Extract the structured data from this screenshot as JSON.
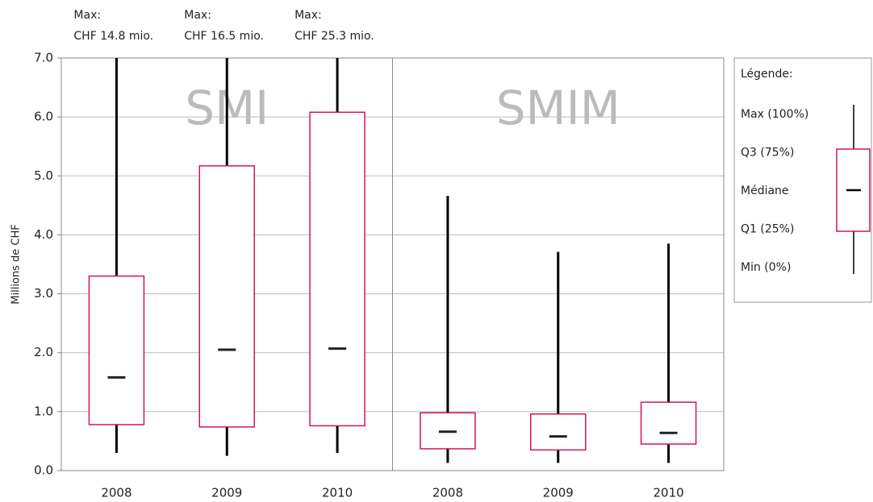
{
  "chart_data": {
    "type": "box",
    "y_label": "Millions de CHF",
    "categories": [
      "2008",
      "2009",
      "2010",
      "2008",
      "2009",
      "2010"
    ],
    "groups": [
      "SMI",
      "SMIM"
    ],
    "color": "#d4145a",
    "boxes": {
      "min": [
        0.3,
        0.25,
        0.3,
        0.13,
        0.13,
        0.13
      ],
      "q1": [
        0.78,
        0.74,
        0.76,
        0.37,
        0.35,
        0.45
      ],
      "median": [
        1.58,
        2.05,
        2.07,
        0.66,
        0.58,
        0.64
      ],
      "q3": [
        3.3,
        5.17,
        6.08,
        0.98,
        0.96,
        1.16
      ],
      "max": [
        14.8,
        16.5,
        25.3,
        4.66,
        3.71,
        3.85
      ]
    },
    "annotations": [
      [
        "Max:",
        "CHF 14.8 mio."
      ],
      [
        "Max:",
        "CHF 16.5 mio."
      ],
      [
        "Max:",
        "CHF 25.3 mio."
      ]
    ],
    "ylim": [
      0,
      7
    ],
    "yticks": [
      {
        "value": 0,
        "label": "0.0"
      },
      {
        "value": 1,
        "label": "1.0"
      },
      {
        "value": 2,
        "label": "2.0"
      },
      {
        "value": 3,
        "label": "3.0"
      },
      {
        "value": 4,
        "label": "4.0"
      },
      {
        "value": 5,
        "label": "5.0"
      },
      {
        "value": 6,
        "label": "6.0"
      },
      {
        "value": 7,
        "label": "7.0"
      }
    ],
    "grid": true,
    "legend": {
      "title": "Légende:",
      "items": [
        "Max  (100%)",
        "Q3 (75%)",
        "Médiane",
        "Q1  (25%)",
        "Min (0%)"
      ]
    }
  }
}
